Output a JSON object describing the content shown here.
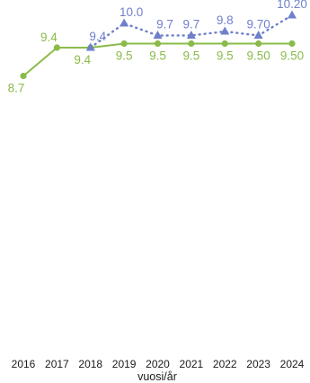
{
  "chart_data": {
    "type": "line",
    "title": "",
    "xlabel": "vuosi/år",
    "ylabel": "",
    "x": [
      "2016",
      "2017",
      "2018",
      "2019",
      "2020",
      "2021",
      "2022",
      "2023",
      "2024"
    ],
    "ylim": [
      0,
      10.5
    ],
    "grid": false,
    "legend": "none",
    "series": [
      {
        "color": "#8ABB4A",
        "style": "solid",
        "marker": "circle",
        "values": [
          8.7,
          9.4,
          9.4,
          9.5,
          9.5,
          9.5,
          9.5,
          9.5,
          9.5
        ],
        "labels": [
          "8.7",
          "9.4",
          "9.4",
          "9.5",
          "9.5",
          "9.5",
          "9.5",
          "9.50",
          "9.50"
        ]
      },
      {
        "color": "#6F7FCB",
        "style": "dotted",
        "marker": "triangle",
        "values": [
          null,
          null,
          9.4,
          10.0,
          9.7,
          9.7,
          9.8,
          9.7,
          10.2
        ],
        "labels": [
          null,
          null,
          "9.4",
          "10.0",
          "9.7",
          "9.7",
          "9.8",
          "9.70",
          "10.20"
        ]
      }
    ]
  }
}
